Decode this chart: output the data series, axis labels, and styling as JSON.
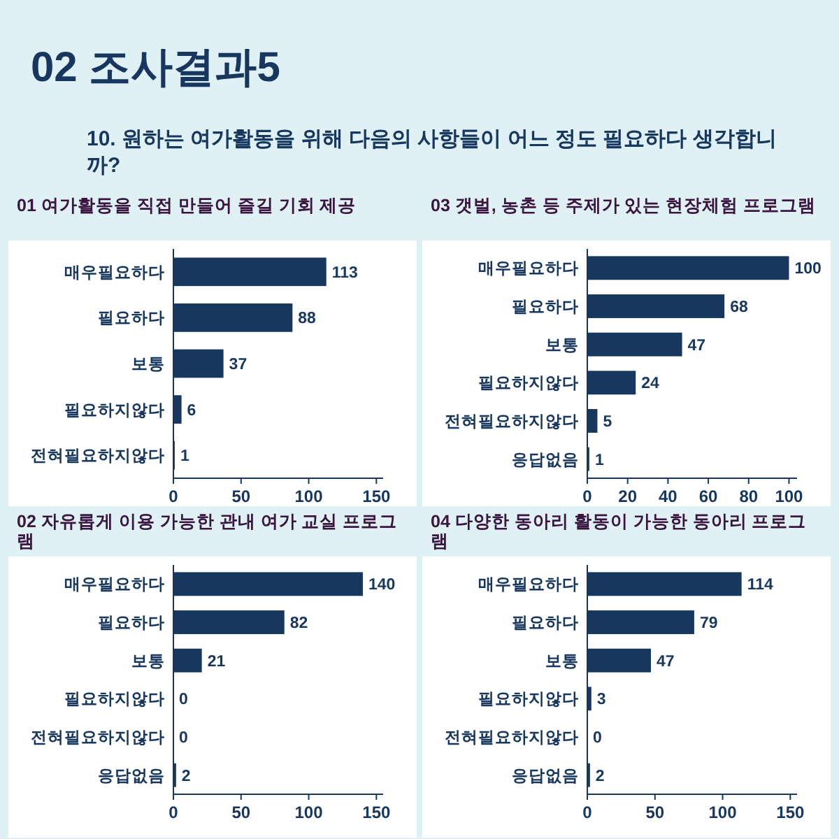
{
  "chart_data": [
    {
      "type": "other",
      "title": "02 조사결과5",
      "subtitle": "10. 원하는 여가활동을 위해 다음의 사항들이 어느 정도 필요하다 생각합니까?"
    },
    {
      "type": "bar",
      "orientation": "horizontal",
      "title": "01 여가활동을 직접 만들어 즐길 기회 제공",
      "categories": [
        "매우필요하다",
        "필요하다",
        "보통",
        "필요하지않다",
        "전혀필요하지않다"
      ],
      "values": [
        113,
        88,
        37,
        6,
        1
      ],
      "color": "#17375e",
      "xlim": [
        0,
        155
      ],
      "xticks": [
        0,
        50,
        100,
        150
      ],
      "data_labels": true
    },
    {
      "type": "bar",
      "orientation": "horizontal",
      "title": "03 갯벌, 농촌 등 주제가 있는 현장체험 프로그램",
      "categories": [
        "매우필요하다",
        "필요하다",
        "보통",
        "필요하지않다",
        "전혀필요하지않다",
        "응답없음"
      ],
      "values": [
        100,
        68,
        47,
        24,
        5,
        1
      ],
      "color": "#17375e",
      "xlim": [
        0,
        104
      ],
      "xticks": [
        0,
        20,
        40,
        60,
        80,
        100
      ],
      "data_labels": true
    },
    {
      "type": "bar",
      "orientation": "horizontal",
      "title": "02 자유롭게 이용 가능한 관내 여가 교실 프로그램",
      "categories": [
        "매우필요하다",
        "필요하다",
        "보통",
        "필요하지않다",
        "전혀필요하지않다",
        "응답없음"
      ],
      "values": [
        140,
        82,
        21,
        0,
        0,
        2
      ],
      "color": "#17375e",
      "xlim": [
        0,
        155
      ],
      "xticks": [
        0,
        50,
        100,
        150
      ],
      "data_labels": true
    },
    {
      "type": "bar",
      "orientation": "horizontal",
      "title": "04 다양한 동아리 활동이 가능한 동아리 프로그램",
      "categories": [
        "매우필요하다",
        "필요하다",
        "보통",
        "필요하지않다",
        "전혀필요하지않다",
        "응답없음"
      ],
      "values": [
        114,
        79,
        47,
        3,
        0,
        2
      ],
      "color": "#17375e",
      "xlim": [
        0,
        155
      ],
      "xticks": [
        0,
        50,
        100,
        150
      ],
      "data_labels": true
    }
  ]
}
